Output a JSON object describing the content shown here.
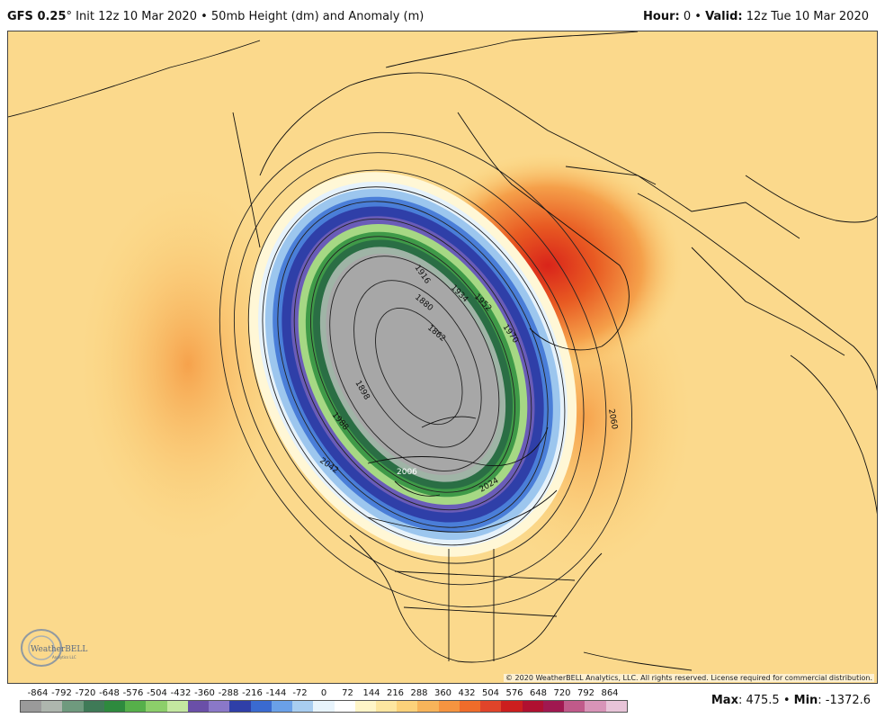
{
  "header": {
    "model": "GFS 0.25",
    "degree": "°",
    "init_text": " Init 12z 10 Mar 2020 • 50mb Height (dm) and Anomaly (m)",
    "hour_label": "Hour:",
    "hour_value": " 0 • ",
    "valid_label": "Valid:",
    "valid_value": " 12z Tue 10 Mar 2020"
  },
  "map": {
    "contour_labels": [
      "1916",
      "1880",
      "1862",
      "1934",
      "1952",
      "1970",
      "1898",
      "1988",
      "2006",
      "2042",
      "2024",
      "2060"
    ],
    "copyright": "© 2020 WeatherBELL Analytics, LLC. All rights reserved. License required for commercial distribution.",
    "logo_text": "WeatherBELL",
    "logo_subtext": "Analytics LLC"
  },
  "legend": {
    "labels": [
      "-864",
      "-792",
      "-720",
      "-648",
      "-576",
      "-504",
      "-432",
      "-360",
      "-288",
      "-216",
      "-144",
      "-72",
      "0",
      "72",
      "144",
      "216",
      "288",
      "360",
      "432",
      "504",
      "576",
      "648",
      "720",
      "792",
      "864"
    ],
    "colors": [
      "#9a9a9a",
      "#aeb6ae",
      "#6f9a7e",
      "#3f7a57",
      "#2e8a3e",
      "#56b04a",
      "#8ccf6a",
      "#c4e8a0",
      "#6a4fa8",
      "#8a78c8",
      "#2f3fa8",
      "#3a6ad0",
      "#6aa0e8",
      "#a8cdf0",
      "#e8f4fc",
      "#ffffff",
      "#fff5c8",
      "#fde6a0",
      "#fcd27a",
      "#f7b45a",
      "#f59440",
      "#ef6c2a",
      "#e0442a",
      "#cc1e1e",
      "#b01030",
      "#a01850",
      "#c05a8a",
      "#d894b8",
      "#e8c4d8"
    ],
    "max_label": "Max",
    "max_value": ": 475.5 • ",
    "min_label": "Min",
    "min_value": ": -1372.6"
  }
}
